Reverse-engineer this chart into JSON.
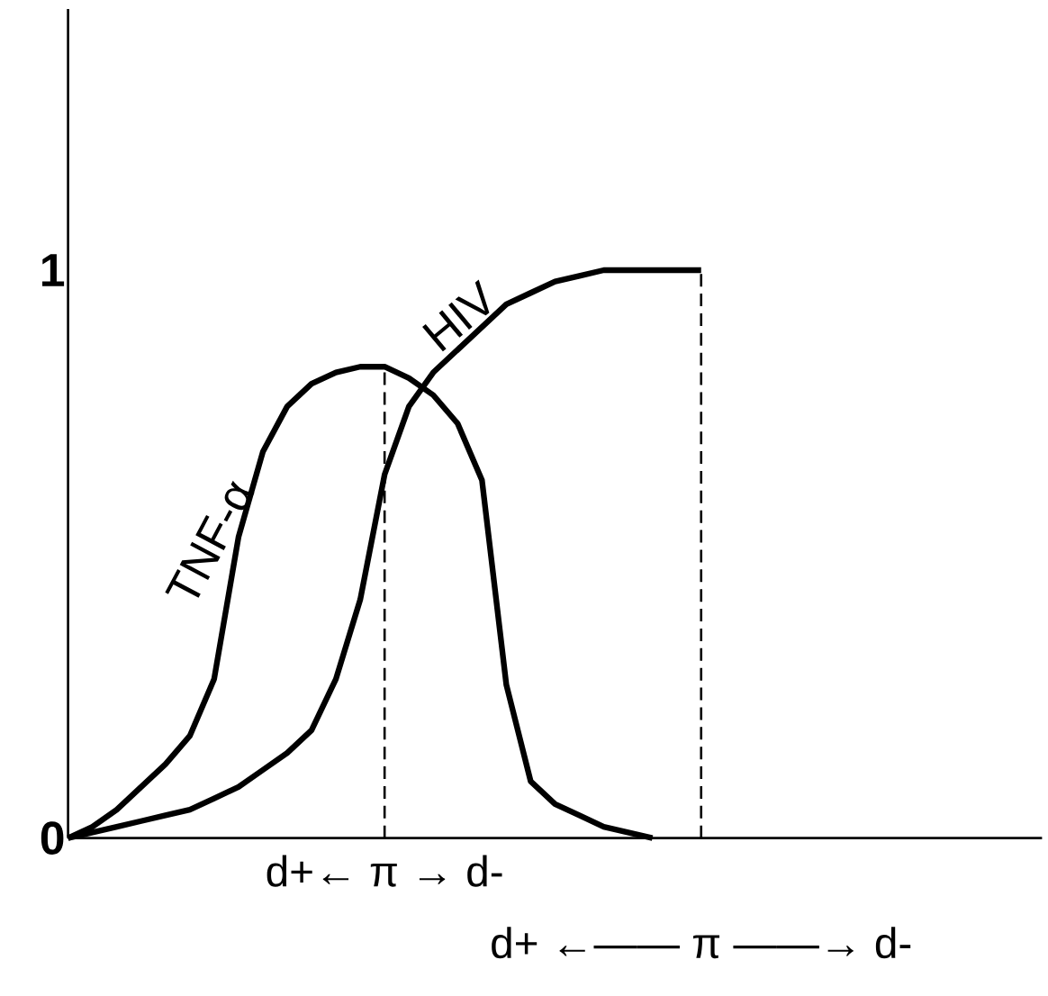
{
  "chart_data": {
    "type": "line",
    "ylim": [
      0,
      1.46
    ],
    "yticks": [
      0,
      1
    ],
    "tick_labels": "y",
    "marker": "none",
    "line_style": "solid",
    "categories": [
      null,
      null,
      null,
      null,
      null,
      null,
      null,
      null,
      null,
      null,
      null,
      null,
      null,
      null,
      null,
      null,
      null,
      null,
      null,
      null,
      null,
      null,
      null,
      null,
      null,
      null,
      null,
      null,
      null,
      null,
      null,
      null,
      null,
      null,
      null,
      null,
      null,
      null,
      null,
      null,
      null
    ],
    "series": [
      {
        "name": "TNF-α",
        "color": "#000000",
        "values": [
          0,
          0.02,
          0.05,
          0.09,
          0.13,
          0.18,
          0.28,
          0.53,
          0.68,
          0.76,
          0.8,
          0.82,
          0.83,
          0.83,
          0.81,
          0.78,
          0.73,
          0.63,
          0.27,
          0.1,
          0.06,
          0.04,
          0.02,
          0.01,
          0,
          null,
          null,
          null,
          null,
          null,
          null,
          null,
          null,
          null,
          null,
          null,
          null,
          null,
          null,
          null,
          null
        ]
      },
      {
        "name": "HIV",
        "color": "#000000",
        "values": [
          0,
          0.01,
          0.02,
          0.03,
          0.04,
          0.05,
          0.07,
          0.09,
          0.12,
          0.15,
          0.19,
          0.28,
          0.42,
          0.64,
          0.76,
          0.82,
          0.86,
          0.9,
          0.94,
          0.96,
          0.98,
          0.99,
          1.0,
          1.0,
          1.0,
          1.0,
          1.0,
          null,
          null,
          null,
          null,
          null,
          null,
          null,
          null,
          null,
          null,
          null,
          null,
          null,
          null
        ]
      }
    ],
    "annotations": [
      "d+← π → d-",
      "d+ ←—— π ——→ d-"
    ]
  }
}
